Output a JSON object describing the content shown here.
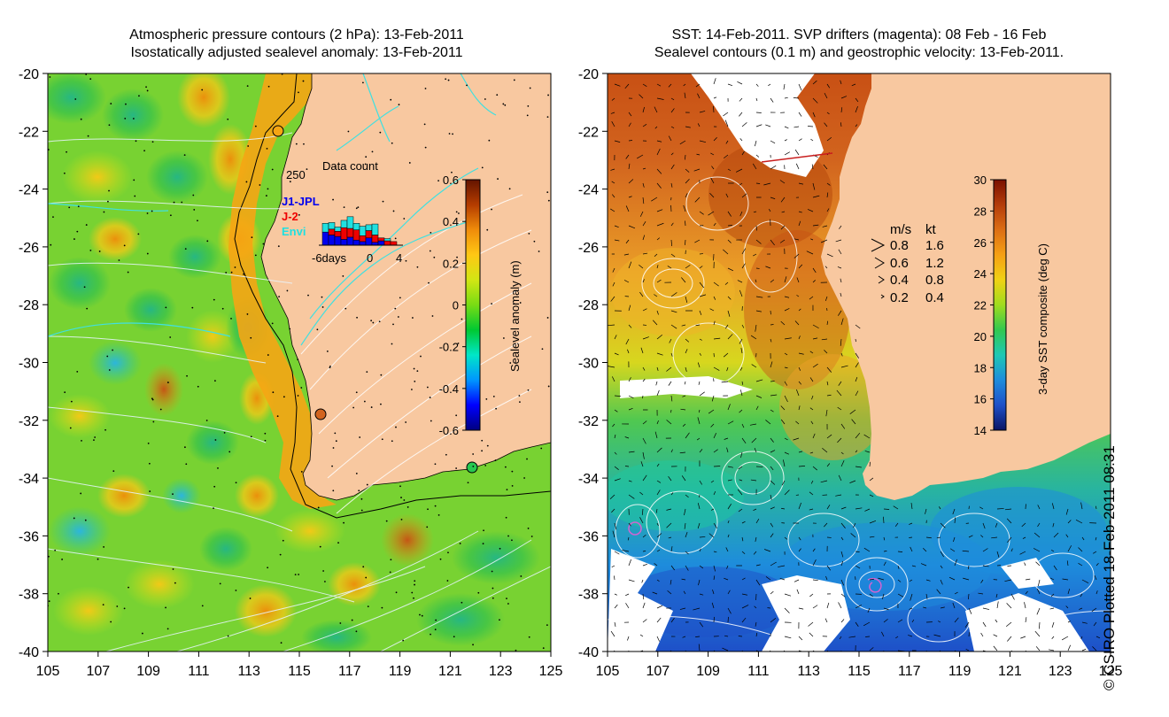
{
  "left_panel": {
    "title_line1": "Atmospheric pressure contours (2 hPa): 13-Feb-2011",
    "title_line2": "Isostatically adjusted sealevel anomaly: 13-Feb-2011",
    "y_ticks": [
      "-20",
      "-22",
      "-24",
      "-26",
      "-28",
      "-30",
      "-32",
      "-34",
      "-36",
      "-38",
      "-40"
    ],
    "x_ticks": [
      "105",
      "107",
      "109",
      "111",
      "113",
      "115",
      "117",
      "119",
      "121",
      "123",
      "125"
    ],
    "colorbar": {
      "label": "Sealevel anomaly (m)",
      "ticks": [
        "0.6",
        "0.4",
        "0.2",
        "0",
        "-0.2",
        "-0.4",
        "-0.6"
      ]
    },
    "inset": {
      "title": "Data count",
      "y_max_label": "250",
      "x_labels": [
        "-6days",
        "0",
        "4"
      ],
      "legend": [
        {
          "label": "J1-JPL",
          "color": "#0000ee"
        },
        {
          "label": "J-2",
          "color": "#ee0000"
        },
        {
          "label": "Envi",
          "color": "#20e0e0"
        }
      ],
      "bars": [
        {
          "blue": 90,
          "red": 0,
          "cyan": 60
        },
        {
          "blue": 70,
          "red": 40,
          "cyan": 45
        },
        {
          "blue": 60,
          "red": 35,
          "cyan": 30
        },
        {
          "blue": 40,
          "red": 80,
          "cyan": 50
        },
        {
          "blue": 55,
          "red": 60,
          "cyan": 80
        },
        {
          "blue": 35,
          "red": 70,
          "cyan": 45
        },
        {
          "blue": 25,
          "red": 40,
          "cyan": 65
        },
        {
          "blue": 50,
          "red": 50,
          "cyan": 40
        },
        {
          "blue": 20,
          "red": 50,
          "cyan": 75
        },
        {
          "blue": 30,
          "red": 20,
          "cyan": 0
        },
        {
          "blue": 0,
          "red": 30,
          "cyan": 15
        },
        {
          "blue": 0,
          "red": 25,
          "cyan": 0
        }
      ]
    }
  },
  "right_panel": {
    "title_line1": "SST: 14-Feb-2011. SVP drifters (magenta): 08 Feb - 16 Feb",
    "title_line2": "Sealevel contours (0.1 m) and geostrophic velocity: 13-Feb-2011.",
    "y_ticks": [
      "-20",
      "-22",
      "-24",
      "-26",
      "-28",
      "-30",
      "-32",
      "-34",
      "-36",
      "-38",
      "-40"
    ],
    "x_ticks": [
      "105",
      "107",
      "109",
      "111",
      "113",
      "115",
      "117",
      "119",
      "121",
      "123",
      "125"
    ],
    "colorbar": {
      "label": "3-day SST composite (deg C)",
      "ticks": [
        "30",
        "28",
        "26",
        "24",
        "22",
        "20",
        "18",
        "16",
        "14"
      ]
    },
    "velocity_legend": {
      "header_ms": "m/s",
      "header_kt": "kt",
      "rows": [
        {
          "ms": "0.8",
          "kt": "1.6"
        },
        {
          "ms": "0.6",
          "kt": "1.2"
        },
        {
          "ms": "0.4",
          "kt": "0.8"
        },
        {
          "ms": "0.2",
          "kt": "0.4"
        }
      ]
    }
  },
  "credit": "© CSIRO Plotted 18-Feb-2011 08:31",
  "colors": {
    "land": "#f8c8a0",
    "sla_stops": [
      "#000080",
      "#0000ff",
      "#0096ff",
      "#00e6c8",
      "#00c832",
      "#78dc14",
      "#d2e614",
      "#ffc814",
      "#f08c0a",
      "#b43c00",
      "#641400"
    ],
    "sst_stops": [
      "#0a1464",
      "#1e50c8",
      "#1e8cdc",
      "#1ec8b4",
      "#32c850",
      "#a0dc1e",
      "#f0d214",
      "#f5a014",
      "#dc6e14",
      "#b43c0a",
      "#7a1000"
    ]
  }
}
